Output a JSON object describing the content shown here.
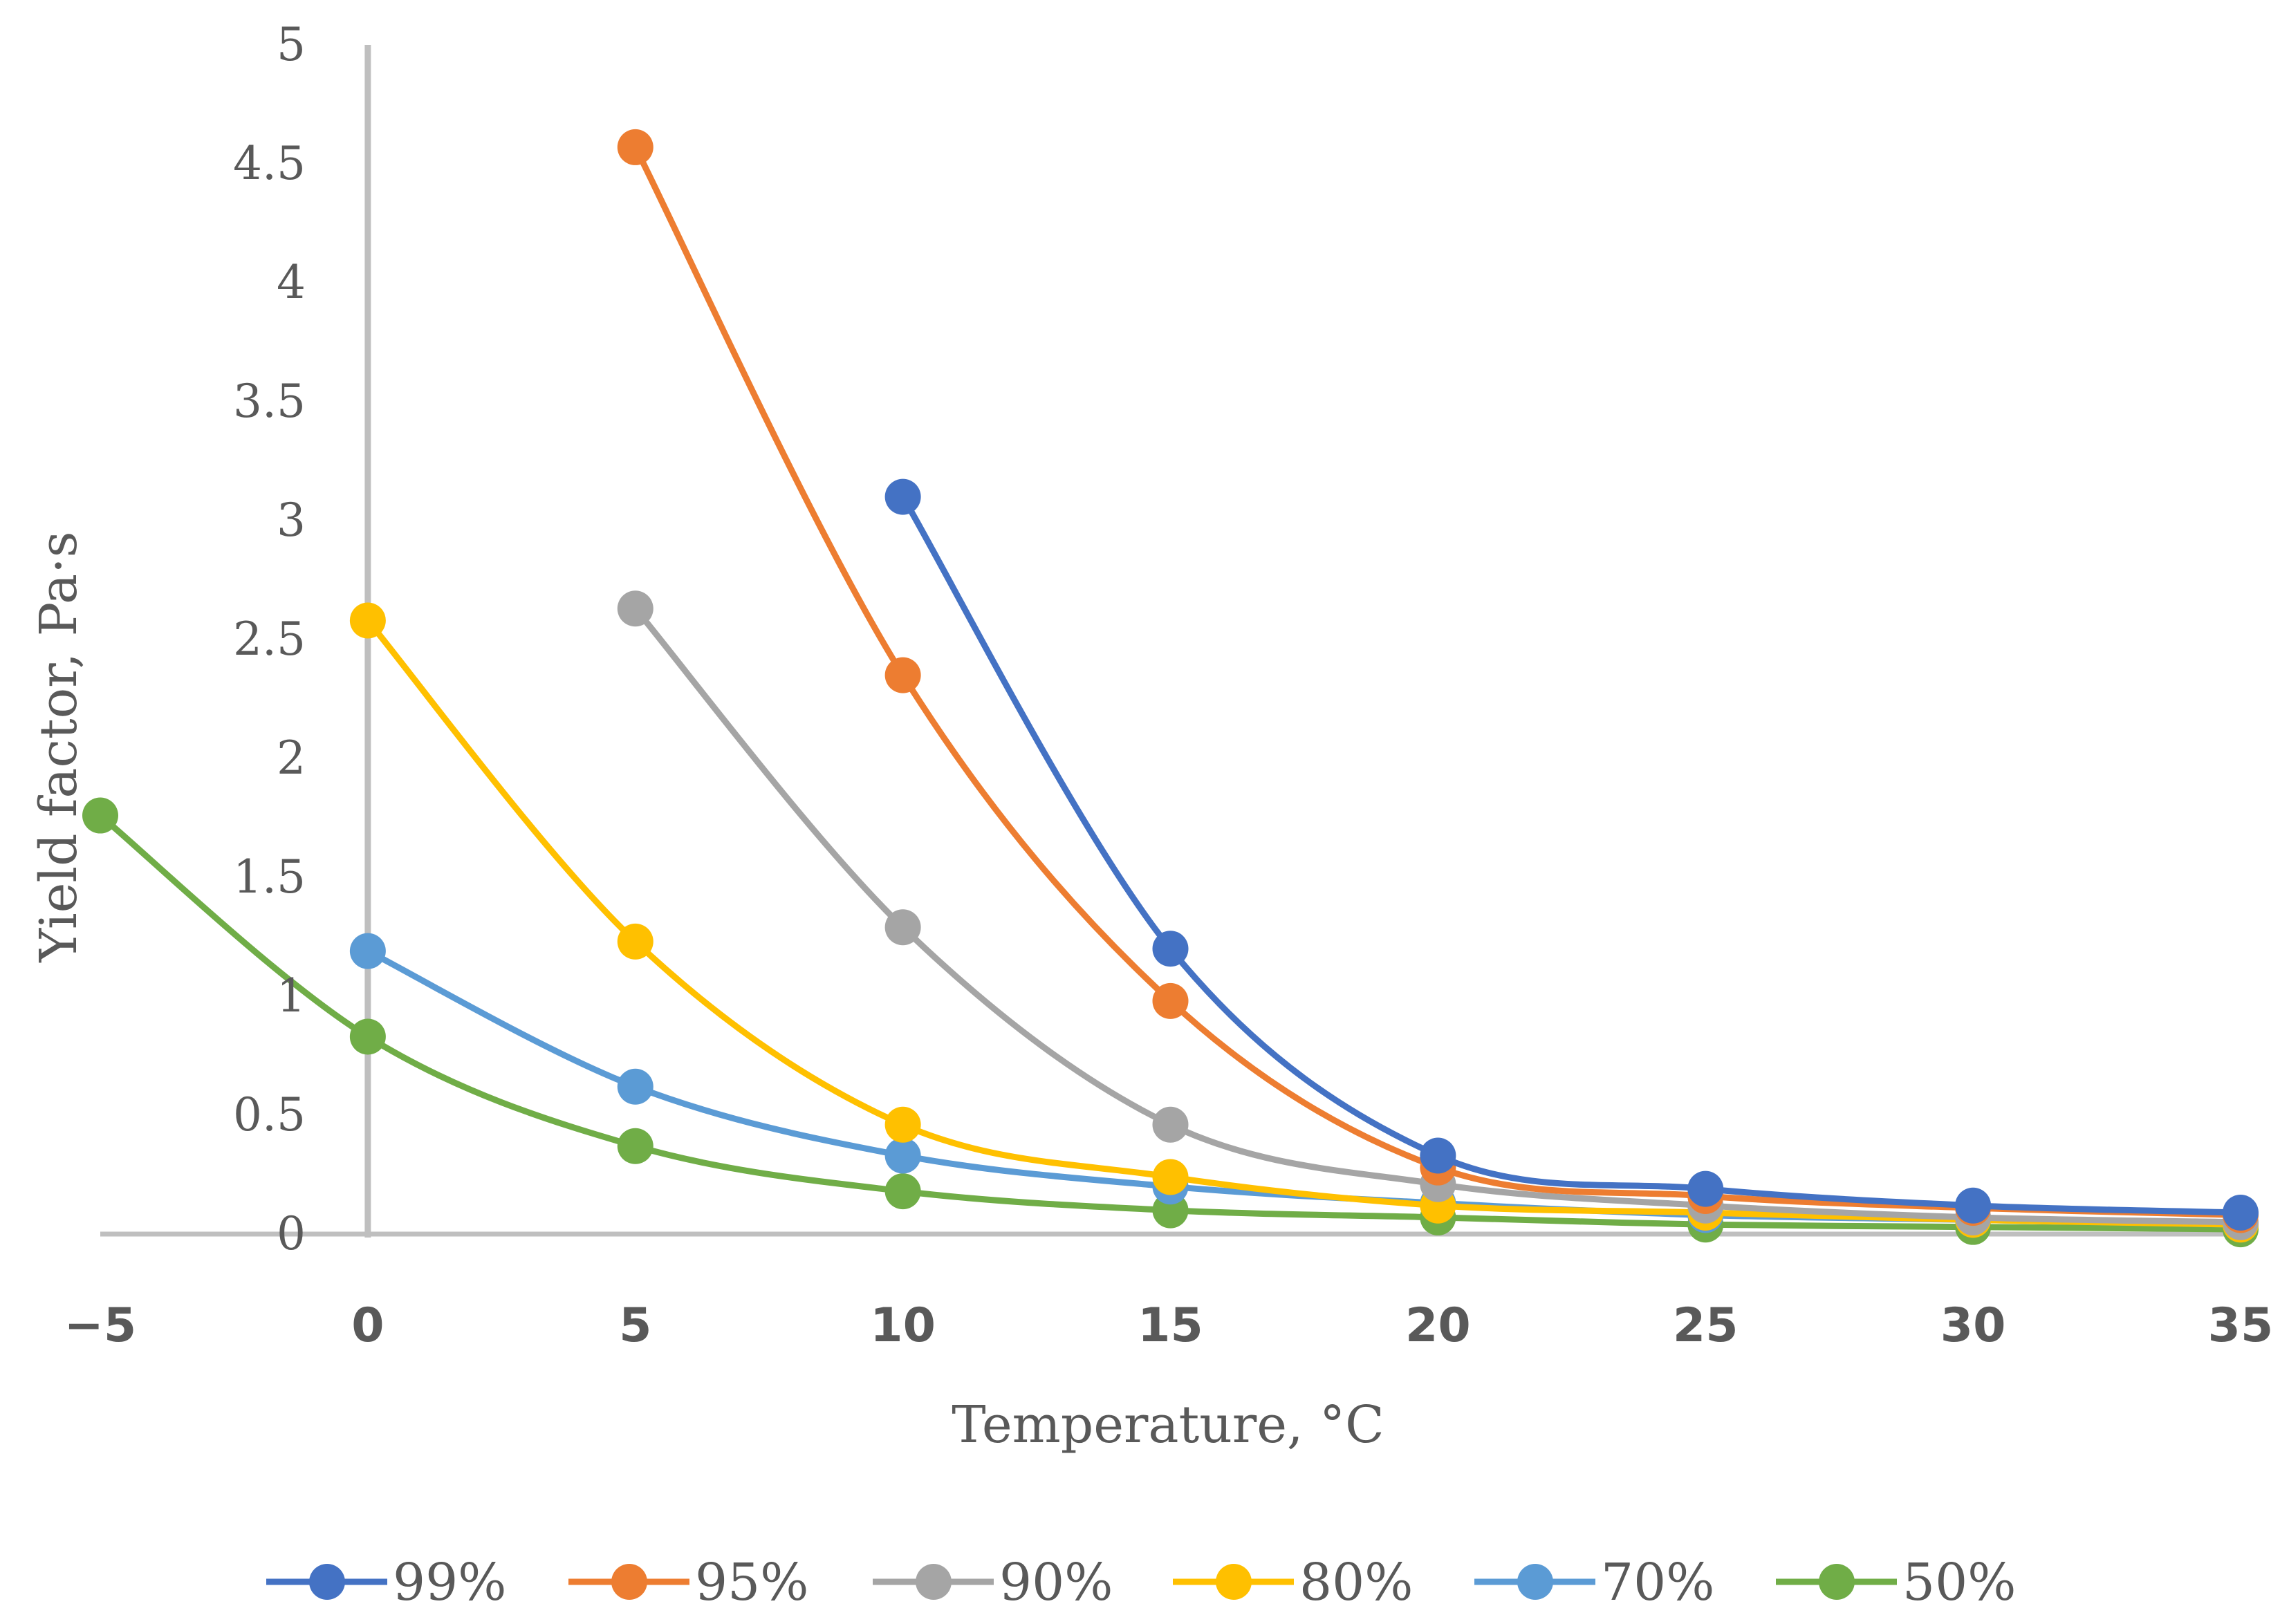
{
  "chart_data": {
    "type": "line",
    "title": "",
    "xlabel": "Temperature, °C",
    "ylabel": "Yield factor, Pa·s",
    "xlim": [
      -5,
      35
    ],
    "ylim": [
      0,
      5
    ],
    "x_ticks": [
      "−5",
      "0",
      "5",
      "10",
      "15",
      "20",
      "25",
      "30",
      "35"
    ],
    "y_ticks": [
      "0",
      "0.5",
      "1",
      "1.5",
      "2",
      "2.5",
      "3",
      "3.5",
      "4",
      "4.5",
      "5"
    ],
    "legend_position": "bottom",
    "series": [
      {
        "name": "99%",
        "color": "#4472C4",
        "points": [
          [
            10,
            3.1
          ],
          [
            15,
            1.2
          ],
          [
            20,
            0.33
          ],
          [
            25,
            0.19
          ],
          [
            30,
            0.12
          ],
          [
            35,
            0.09
          ]
        ]
      },
      {
        "name": "95%",
        "color": "#ED7D31",
        "points": [
          [
            5,
            4.57
          ],
          [
            10,
            2.35
          ],
          [
            15,
            0.98
          ],
          [
            20,
            0.28
          ],
          [
            25,
            0.16
          ],
          [
            30,
            0.11
          ],
          [
            35,
            0.08
          ]
        ]
      },
      {
        "name": "90%",
        "color": "#A5A5A5",
        "points": [
          [
            5,
            2.63
          ],
          [
            10,
            1.29
          ],
          [
            15,
            0.46
          ],
          [
            20,
            0.21
          ],
          [
            25,
            0.12
          ],
          [
            30,
            0.07
          ],
          [
            35,
            0.05
          ]
        ]
      },
      {
        "name": "80%",
        "color": "#FFC000",
        "points": [
          [
            0,
            2.58
          ],
          [
            5,
            1.23
          ],
          [
            10,
            0.46
          ],
          [
            15,
            0.24
          ],
          [
            20,
            0.12
          ],
          [
            25,
            0.09
          ],
          [
            30,
            0.06
          ],
          [
            35,
            0.04
          ]
        ]
      },
      {
        "name": "70%",
        "color": "#5B9BD5",
        "points": [
          [
            0,
            1.19
          ],
          [
            5,
            0.62
          ],
          [
            10,
            0.33
          ],
          [
            15,
            0.2
          ],
          [
            20,
            0.13
          ],
          [
            25,
            0.08
          ],
          [
            30,
            0.06
          ],
          [
            35,
            0.04
          ]
        ]
      },
      {
        "name": "50%",
        "color": "#70AD47",
        "points": [
          [
            -5,
            1.76
          ],
          [
            0,
            0.83
          ],
          [
            5,
            0.37
          ],
          [
            10,
            0.18
          ],
          [
            15,
            0.1
          ],
          [
            20,
            0.07
          ],
          [
            25,
            0.04
          ],
          [
            30,
            0.03
          ],
          [
            35,
            0.02
          ]
        ]
      }
    ]
  },
  "colors": {
    "axis": "#BFBFBF",
    "text": "#595959",
    "background": "#FFFFFF"
  }
}
